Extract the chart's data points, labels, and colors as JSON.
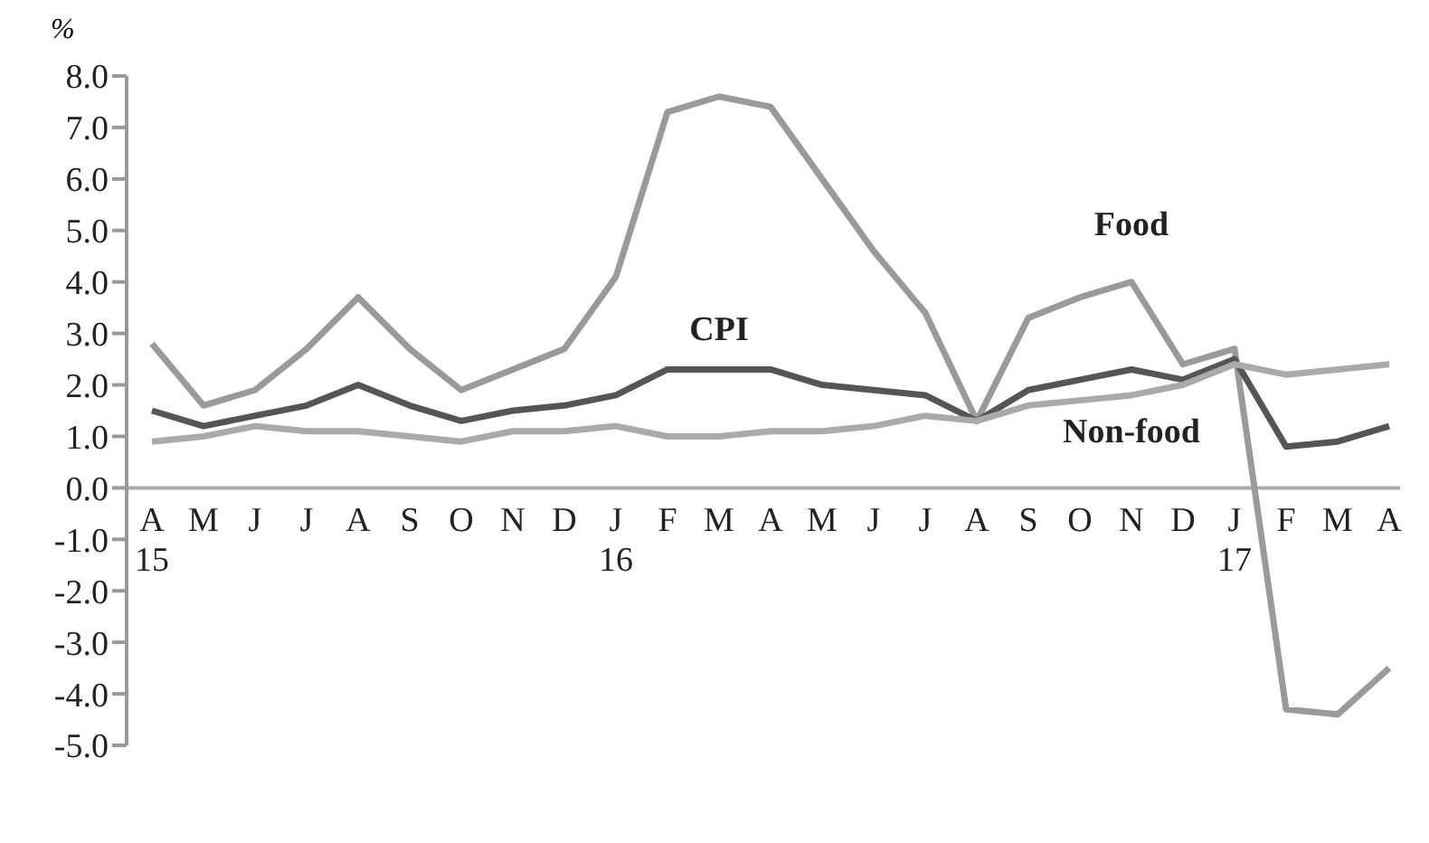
{
  "chart_data": {
    "type": "line",
    "ylabel": "%",
    "categories": [
      "A\n15",
      "M",
      "J",
      "J",
      "A",
      "S",
      "O",
      "N",
      "D",
      "J\n16",
      "F",
      "M",
      "A",
      "M",
      "J",
      "J",
      "A",
      "S",
      "O",
      "N",
      "D",
      "J\n17",
      "F",
      "M",
      "A"
    ],
    "series": [
      {
        "name": "Food",
        "color": "#9a9a9a",
        "values": [
          2.8,
          1.6,
          1.9,
          2.7,
          3.7,
          2.7,
          1.9,
          2.3,
          2.7,
          4.1,
          7.3,
          7.6,
          7.4,
          6.0,
          4.6,
          3.4,
          1.3,
          3.3,
          3.7,
          4.0,
          2.4,
          2.7,
          -4.3,
          -4.4,
          -3.5
        ]
      },
      {
        "name": "CPI",
        "color": "#555555",
        "values": [
          1.5,
          1.2,
          1.4,
          1.6,
          2.0,
          1.6,
          1.3,
          1.5,
          1.6,
          1.8,
          2.3,
          2.3,
          2.3,
          2.0,
          1.9,
          1.8,
          1.3,
          1.9,
          2.1,
          2.3,
          2.1,
          2.5,
          0.8,
          0.9,
          1.2
        ]
      },
      {
        "name": "Non-food",
        "color": "#aaaaaa",
        "values": [
          0.9,
          1.0,
          1.2,
          1.1,
          1.1,
          1.0,
          0.9,
          1.1,
          1.1,
          1.2,
          1.0,
          1.0,
          1.1,
          1.1,
          1.2,
          1.4,
          1.3,
          1.6,
          1.7,
          1.8,
          2.0,
          2.4,
          2.2,
          2.3,
          2.4
        ]
      }
    ],
    "ylim": [
      -5,
      8
    ],
    "yticks": [
      {
        "value": -5,
        "label": "-5.0"
      },
      {
        "value": -4,
        "label": "-4.0"
      },
      {
        "value": -3,
        "label": "-3.0"
      },
      {
        "value": -2,
        "label": "-2.0"
      },
      {
        "value": -1,
        "label": "-1.0"
      },
      {
        "value": 0,
        "label": "0.0"
      },
      {
        "value": 1,
        "label": "1.0"
      },
      {
        "value": 2,
        "label": "2.0"
      },
      {
        "value": 3,
        "label": "3.0"
      },
      {
        "value": 4,
        "label": "4.0"
      },
      {
        "value": 5,
        "label": "5.0"
      },
      {
        "value": 6,
        "label": "6.0"
      },
      {
        "value": 7,
        "label": "7.0"
      },
      {
        "value": 8,
        "label": "8.0"
      }
    ],
    "grid": false,
    "legend": false,
    "marker": "none",
    "line_style": "solid"
  }
}
